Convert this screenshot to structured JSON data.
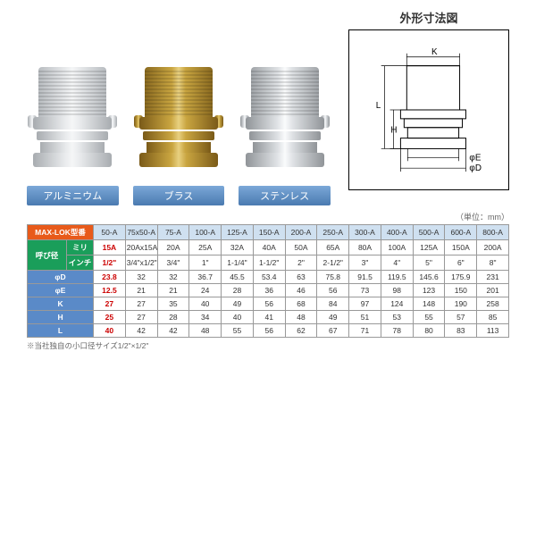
{
  "materials": [
    {
      "key": "alum",
      "label": "アルミニウム"
    },
    {
      "key": "brass",
      "label": "ブラス"
    },
    {
      "key": "steel",
      "label": "ステンレス"
    }
  ],
  "diagram": {
    "title": "外形寸法図",
    "labels": {
      "K": "K",
      "L": "L",
      "H": "H",
      "phiE": "φE",
      "phiD": "φD"
    }
  },
  "unit_note": "（単位：mm）",
  "table": {
    "row_headers": {
      "model": "MAX-LOK型番",
      "nominal": "呼び径",
      "mm": "ミリ",
      "inch": "インチ",
      "phiD": "φD",
      "phiE": "φE",
      "K": "K",
      "H": "H",
      "L": "L"
    },
    "columns": [
      "50-A",
      "75x50-A",
      "75-A",
      "100-A",
      "125-A",
      "150-A",
      "200-A",
      "250-A",
      "300-A",
      "400-A",
      "500-A",
      "600-A",
      "800-A"
    ],
    "mm_row": [
      "15A",
      "20Ax15A",
      "20A",
      "25A",
      "32A",
      "40A",
      "50A",
      "65A",
      "80A",
      "100A",
      "125A",
      "150A",
      "200A"
    ],
    "inch_row": [
      "1/2\"",
      "3/4\"x1/2\"",
      "3/4\"",
      "1\"",
      "1-1/4\"",
      "1-1/2\"",
      "2\"",
      "2-1/2\"",
      "3\"",
      "4\"",
      "5\"",
      "6\"",
      "8\""
    ],
    "dims": {
      "phiD": [
        "23.8",
        "32",
        "32",
        "36.7",
        "45.5",
        "53.4",
        "63",
        "75.8",
        "91.5",
        "119.5",
        "145.6",
        "175.9",
        "231"
      ],
      "phiE": [
        "12.5",
        "21",
        "21",
        "24",
        "28",
        "36",
        "46",
        "56",
        "73",
        "98",
        "123",
        "150",
        "201"
      ],
      "K": [
        "27",
        "27",
        "35",
        "40",
        "49",
        "56",
        "68",
        "84",
        "97",
        "124",
        "148",
        "190",
        "258"
      ],
      "H": [
        "25",
        "27",
        "28",
        "34",
        "40",
        "41",
        "48",
        "49",
        "51",
        "53",
        "55",
        "57",
        "85"
      ],
      "L": [
        "40",
        "42",
        "42",
        "48",
        "55",
        "56",
        "62",
        "67",
        "71",
        "78",
        "80",
        "83",
        "113"
      ]
    },
    "highlight_col": 0
  },
  "footnote": "※当社独自の小口径サイズ1/2\"×1/2\"",
  "colors": {
    "model_hdr": "#e85a1a",
    "nominal_hdr": "#1a9e5a",
    "dim_hdr": "#5a8ac8",
    "red": "#c00"
  }
}
